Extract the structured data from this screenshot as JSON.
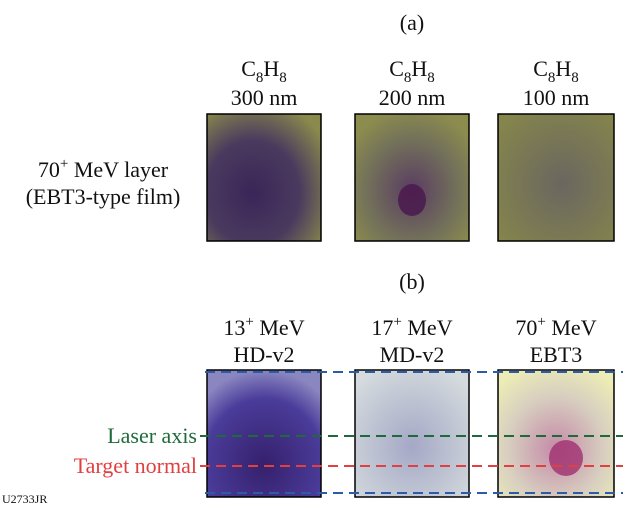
{
  "panel_a": {
    "label": "(a)",
    "columns": [
      {
        "formula": [
          "C",
          "8",
          "H",
          "8"
        ],
        "thickness": "300 nm"
      },
      {
        "formula": [
          "C",
          "8",
          "H",
          "8"
        ],
        "thickness": "200 nm"
      },
      {
        "formula": [
          "C",
          "8",
          "H",
          "8"
        ],
        "thickness": "100 nm"
      }
    ],
    "row_label": {
      "energy": "70",
      "charge": "+",
      "unit": " MeV layer",
      "film": "(EBT3-type film)"
    }
  },
  "panel_b": {
    "label": "(b)",
    "columns": [
      {
        "energy": "13",
        "charge": "+",
        "unit": " MeV",
        "film": "HD-v2"
      },
      {
        "energy": "17",
        "charge": "+",
        "unit": " MeV",
        "film": "MD-v2"
      },
      {
        "energy": "70",
        "charge": "+",
        "unit": " MeV",
        "film": "EBT3"
      }
    ],
    "laser_axis": "Laser axis",
    "target_normal": "Target normal"
  },
  "figure_id": "U2733JR"
}
